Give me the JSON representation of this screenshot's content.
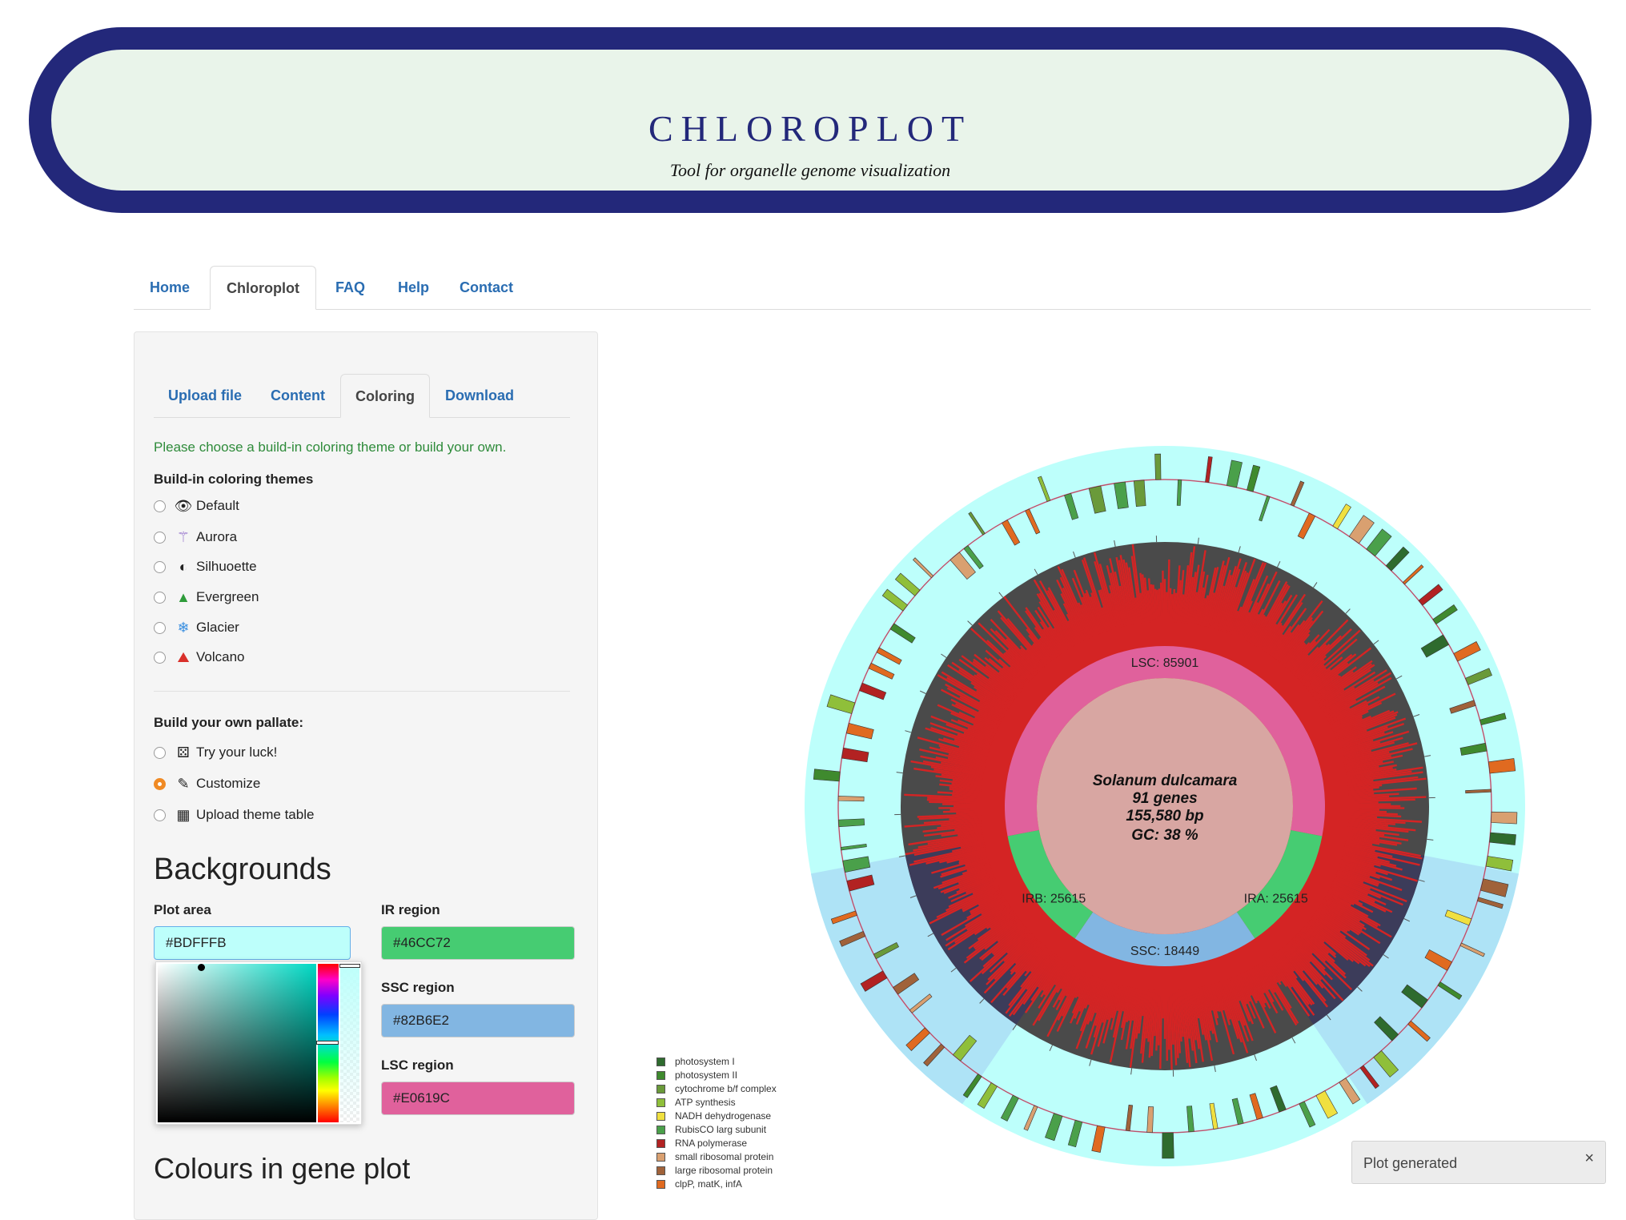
{
  "banner": {
    "title": "CHLOROPLOT",
    "subtitle": "Tool for organelle genome visualization"
  },
  "topnav": {
    "tabs": [
      "Home",
      "Chloroplot",
      "FAQ",
      "Help",
      "Contact"
    ],
    "active": "Chloroplot"
  },
  "sidebar": {
    "tabs": [
      "Upload file",
      "Content",
      "Coloring",
      "Download"
    ],
    "active_tab": "Coloring",
    "hint": "Please choose a build-in coloring theme or build your own.",
    "themes_label": "Build-in coloring themes",
    "themes": [
      {
        "label": "Default",
        "icon": "eye-icon"
      },
      {
        "label": "Aurora",
        "icon": "aurora-icon"
      },
      {
        "label": "Silhuoette",
        "icon": "half-circle-icon"
      },
      {
        "label": "Evergreen",
        "icon": "tree-icon"
      },
      {
        "label": "Glacier",
        "icon": "snowflake-icon"
      },
      {
        "label": "Volcano",
        "icon": "volcano-icon"
      }
    ],
    "own_label": "Build your own pallate:",
    "own_options": [
      {
        "label": "Try your luck!",
        "icon": "dice-icon",
        "checked": false
      },
      {
        "label": "Customize",
        "icon": "palette-icon",
        "checked": true
      },
      {
        "label": "Upload theme table",
        "icon": "table-icon",
        "checked": false
      }
    ],
    "backgrounds_heading": "Backgrounds",
    "fields": {
      "plot_area": {
        "label": "Plot area",
        "value": "#BDFFFB"
      },
      "ir_region": {
        "label": "IR region",
        "value": "#46CC72"
      },
      "ssc_region": {
        "label": "SSC region",
        "value": "#82B6E2"
      },
      "lsc_region": {
        "label": "LSC region",
        "value": "#E0619C"
      }
    },
    "gene_colours_heading": "Colours in gene plot"
  },
  "plot": {
    "species": "Solanum dulcamara",
    "genes": "91 genes",
    "length": "155,580 bp",
    "gc": "GC: 38 %",
    "regions": {
      "lsc": "LSC: 85901",
      "irb": "IRB: 25615",
      "ira": "IRA: 25615",
      "ssc": "SSC: 18449"
    },
    "colors": {
      "plot_area": "#BDFFFB",
      "ir": "#46CC72",
      "ssc": "#82B6E2",
      "lsc": "#E0619C"
    }
  },
  "legend": [
    {
      "label": "photosystem I",
      "color": "#2e6b2e"
    },
    {
      "label": "photosystem II",
      "color": "#3f8a2e"
    },
    {
      "label": "cytochrome b/f complex",
      "color": "#6a9a3a"
    },
    {
      "label": "ATP synthesis",
      "color": "#8fbf3a"
    },
    {
      "label": "NADH dehydrogenase",
      "color": "#f0e040"
    },
    {
      "label": "RubisCO larg subunit",
      "color": "#4aa04a"
    },
    {
      "label": "RNA polymerase",
      "color": "#b22222"
    },
    {
      "label": "small ribosomal protein",
      "color": "#d9a070"
    },
    {
      "label": "large ribosomal protein",
      "color": "#a0623a"
    },
    {
      "label": "clpP, matK, infA",
      "color": "#e06a20"
    }
  ],
  "toast": {
    "message": "Plot generated",
    "close": "×"
  }
}
